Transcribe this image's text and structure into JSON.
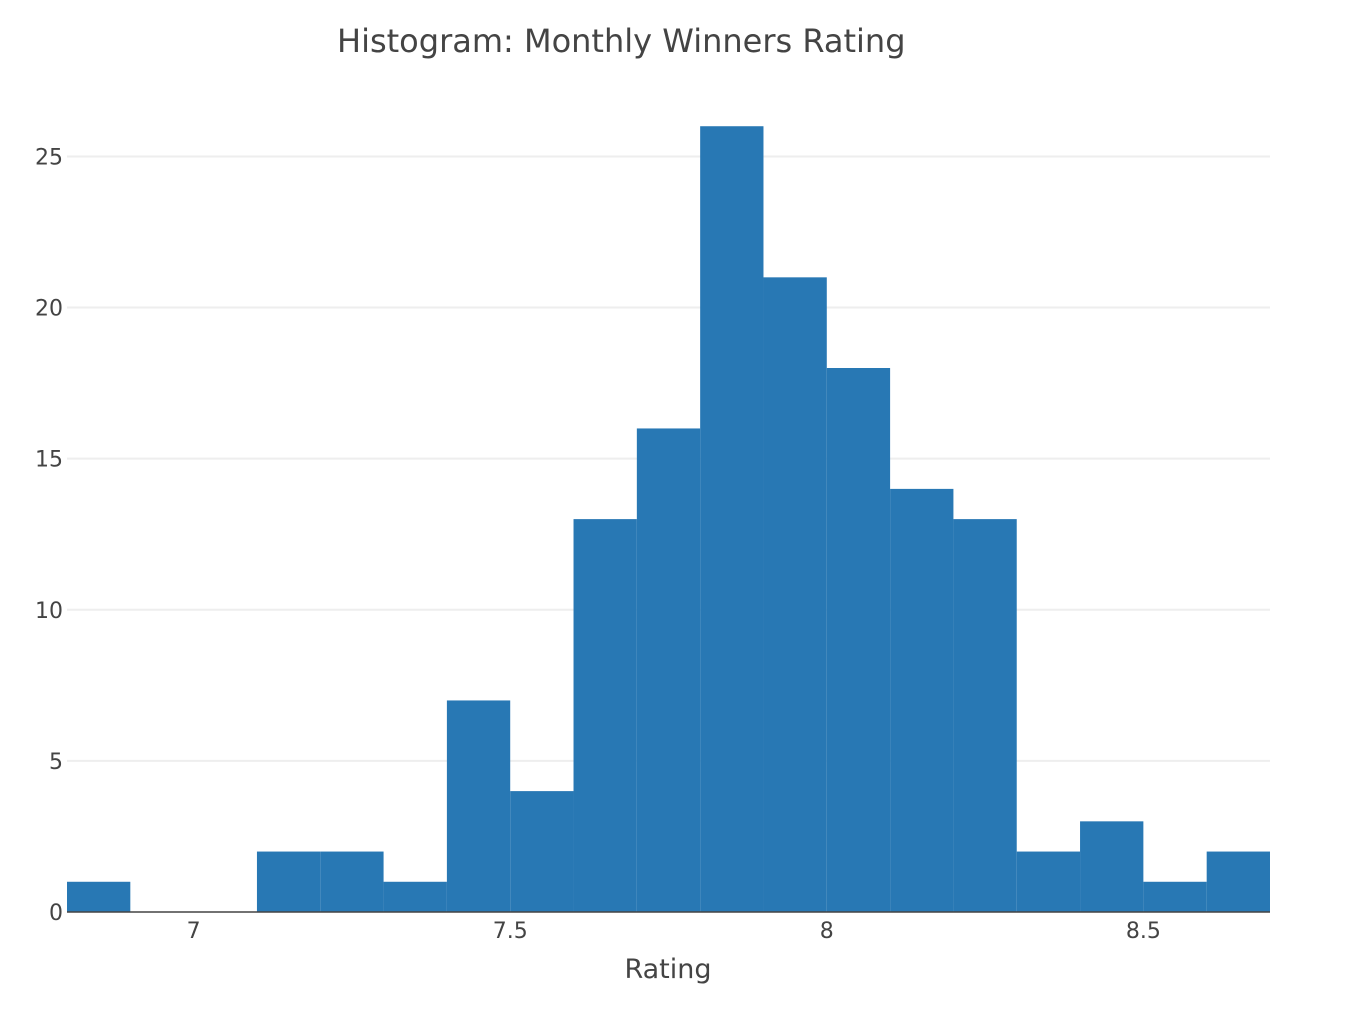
{
  "chart_data": {
    "type": "bar",
    "title": "Histogram: Monthly Winners Rating",
    "xlabel": "Rating",
    "ylabel": "",
    "bin_size": 0.1,
    "bin_starts": [
      6.8,
      6.9,
      7.0,
      7.1,
      7.2,
      7.3,
      7.4,
      7.5,
      7.6,
      7.7,
      7.8,
      7.9,
      8.0,
      8.1,
      8.2,
      8.3,
      8.4,
      8.5,
      8.6
    ],
    "values": [
      1,
      0,
      0,
      2,
      2,
      1,
      7,
      4,
      13,
      16,
      26,
      21,
      18,
      14,
      13,
      2,
      3,
      1,
      2
    ],
    "xlim": [
      6.8,
      8.7
    ],
    "ylim": [
      0,
      27
    ],
    "x_ticks": [
      "7",
      "7.5",
      "8",
      "8.5"
    ],
    "x_tick_values": [
      7,
      7.5,
      8,
      8.5
    ],
    "y_ticks": [
      "0",
      "5",
      "10",
      "15",
      "20",
      "25"
    ],
    "y_tick_values": [
      0,
      5,
      10,
      15,
      20,
      25
    ],
    "grid": true,
    "bar_color": "#2878b4",
    "grid_color": "#eeeeee"
  }
}
